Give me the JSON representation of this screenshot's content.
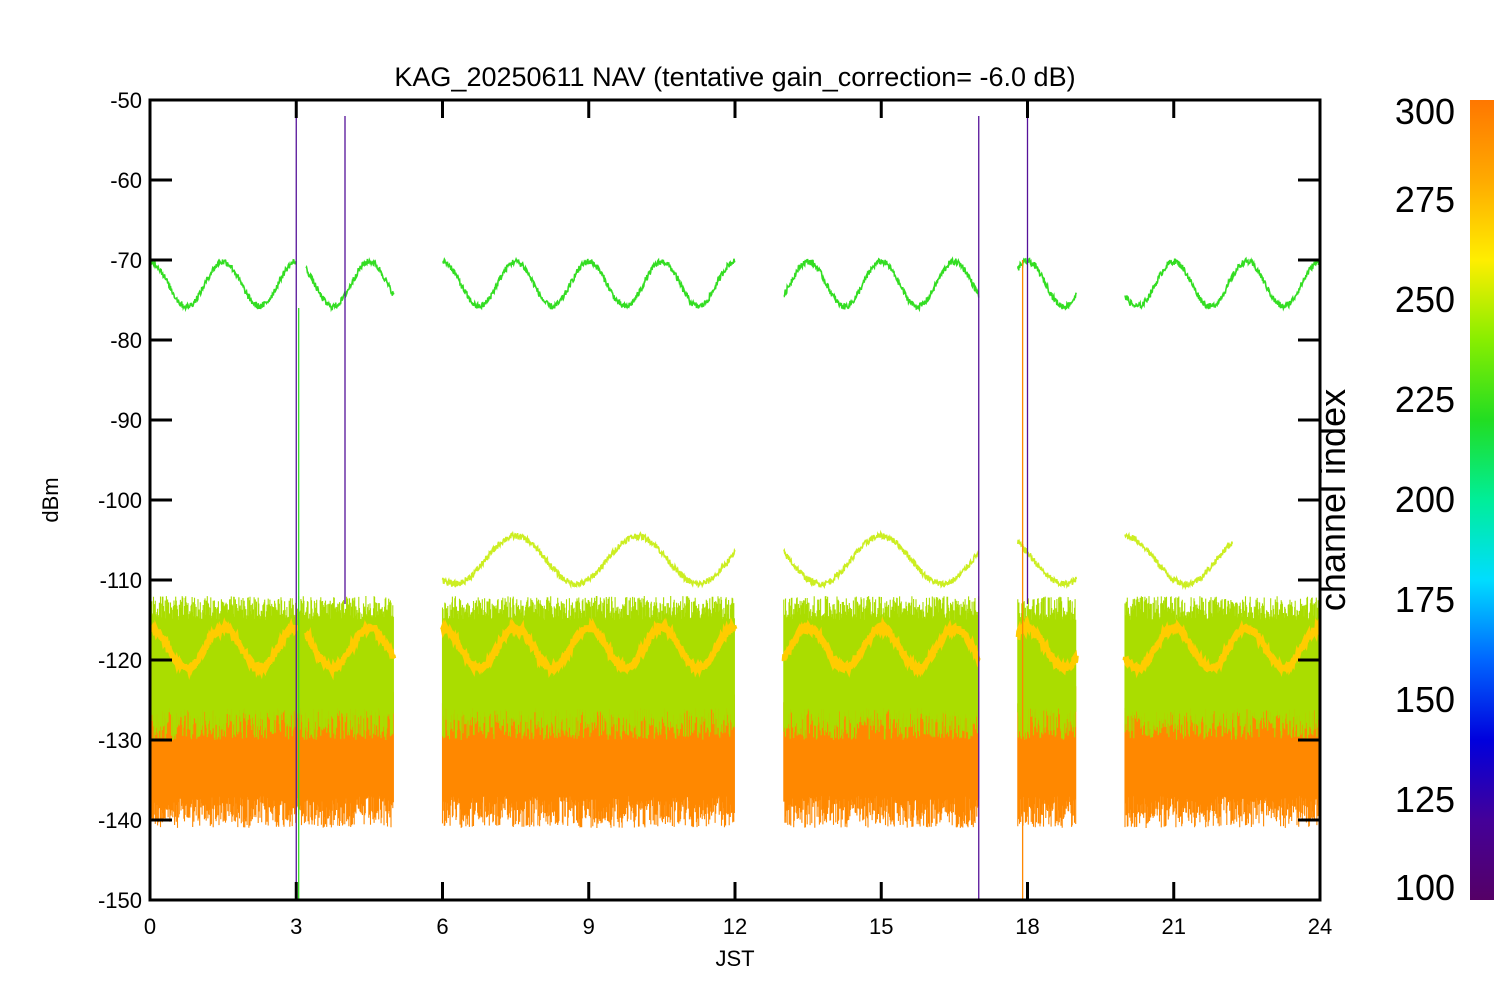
{
  "chart_data": {
    "type": "line",
    "title": "KAG_20250611 NAV (tentative gain_correction= -6.0 dB)",
    "xlabel": "JST",
    "ylabel": "dBm",
    "xlim": [
      0,
      24
    ],
    "ylim": [
      -150,
      -50
    ],
    "xticks": [
      "0",
      "3",
      "6",
      "9",
      "12",
      "15",
      "18",
      "21",
      "24"
    ],
    "yticks": [
      "-50",
      "-60",
      "-70",
      "-80",
      "-90",
      "-100",
      "-110",
      "-120",
      "-130",
      "-140",
      "-150"
    ],
    "data_segments_jst": [
      [
        0,
        5
      ],
      [
        6,
        12
      ],
      [
        13,
        17
      ],
      [
        17.8,
        19
      ],
      [
        20,
        24
      ]
    ],
    "series": [
      {
        "color": "#33dd22",
        "channel_index": 240,
        "mean_dbm": -73,
        "amplitude_db": 2.8,
        "period_h": 1.5,
        "segments": [
          [
            0,
            3
          ],
          [
            3.2,
            5
          ],
          [
            6,
            12
          ],
          [
            13,
            17
          ],
          [
            17.8,
            19
          ],
          [
            20,
            24
          ]
        ]
      },
      {
        "color": "#ccee22",
        "channel_index": 262,
        "mean_dbm": -107.5,
        "amplitude_db": 3.0,
        "period_h": 2.5,
        "segments": [
          [
            6,
            12
          ],
          [
            13,
            17
          ],
          [
            17.8,
            19
          ],
          [
            20,
            22.2
          ]
        ]
      },
      {
        "color": "#ffcc00",
        "channel_index": 272,
        "mean_dbm": -118.5,
        "amplitude_db": 2.5,
        "period_h": 1.5,
        "segments": [
          [
            0,
            3
          ],
          [
            3.2,
            5
          ],
          [
            6,
            12
          ],
          [
            13,
            17
          ],
          [
            17.8,
            19
          ],
          [
            20,
            24
          ]
        ]
      },
      {
        "color": "#ff8800",
        "channel_index": 290,
        "band_dbm": [
          -137,
          -126
        ],
        "segments": [
          [
            0,
            5
          ],
          [
            6,
            12
          ],
          [
            13,
            17
          ],
          [
            17.8,
            19
          ],
          [
            20,
            24
          ]
        ]
      },
      {
        "color": "#aadd00",
        "channel_index": 255,
        "band_dbm": [
          -126,
          -115
        ],
        "segments": [
          [
            0,
            5
          ],
          [
            6,
            12
          ],
          [
            13,
            17
          ],
          [
            17.8,
            19
          ],
          [
            20,
            24
          ]
        ]
      }
    ],
    "spikes": [
      {
        "x": 3.0,
        "y_top": -52,
        "y_bottom": -150,
        "color": "#551199"
      },
      {
        "x": 4.0,
        "y_top": -52,
        "y_bottom": -113,
        "color": "#551199"
      },
      {
        "x": 17.0,
        "y_top": -52,
        "y_bottom": -150,
        "color": "#551199"
      },
      {
        "x": 18.0,
        "y_top": -52,
        "y_bottom": -113,
        "color": "#551199"
      },
      {
        "x": 3.05,
        "y_top": -76,
        "y_bottom": -150,
        "color": "#33dd22"
      },
      {
        "x": 17.9,
        "y_top": -70,
        "y_bottom": -150,
        "color": "#ff8800"
      }
    ],
    "colorbar": {
      "label": "channel index",
      "min": 100,
      "max": 300,
      "ticks": [
        "300",
        "275",
        "250",
        "225",
        "200",
        "175",
        "150",
        "125",
        "100"
      ],
      "colors": [
        "#ff7700",
        "#ffaa00",
        "#ffee00",
        "#88ee00",
        "#22dd22",
        "#00ee99",
        "#00ddff",
        "#0066ff",
        "#0000dd",
        "#440099",
        "#550066"
      ]
    }
  }
}
